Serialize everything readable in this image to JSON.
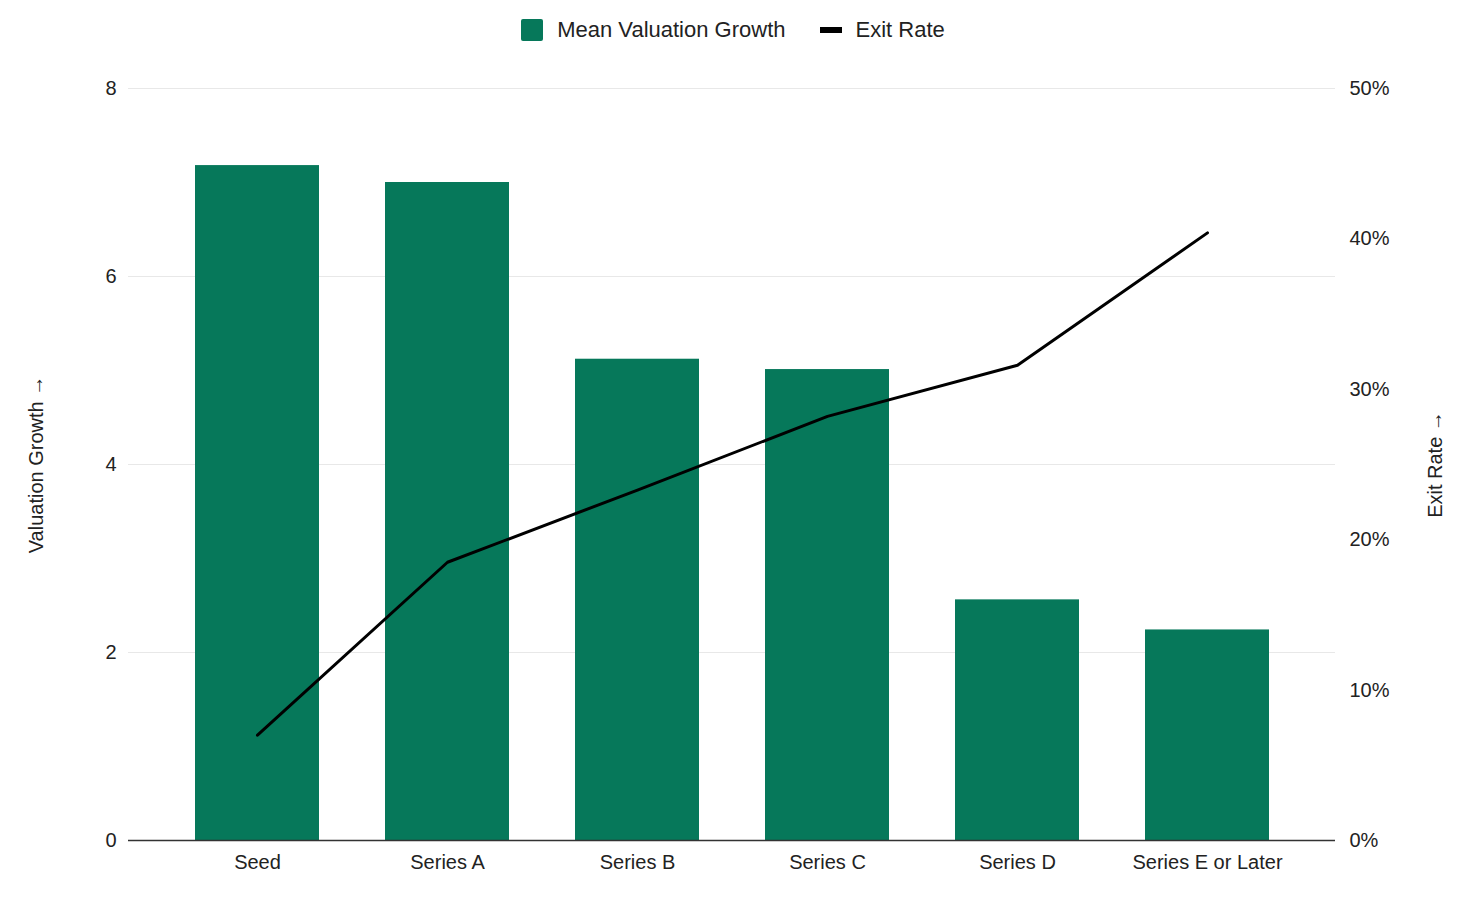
{
  "chart_data": {
    "type": "bar",
    "categories": [
      "Seed",
      "Series A",
      "Series B",
      "Series C",
      "Series D",
      "Series E or Later"
    ],
    "series": [
      {
        "name": "Mean Valuation Growth",
        "type": "bar",
        "color": "#06785a",
        "values": [
          7.18,
          7.0,
          5.12,
          5.01,
          2.56,
          2.24
        ]
      },
      {
        "name": "Exit Rate",
        "type": "line",
        "color": "#000000",
        "axis": "y2",
        "values": [
          7.0,
          18.5,
          23.3,
          28.2,
          31.6,
          40.4
        ]
      }
    ],
    "ylabel": "Valuation Growth",
    "y2label": "Exit Rate",
    "ylim": [
      0,
      8
    ],
    "yticks": [
      0,
      2,
      4,
      6,
      8
    ],
    "y2lim": [
      0,
      50
    ],
    "y2ticks": [
      {
        "value": 0,
        "label": "0%"
      },
      {
        "value": 10,
        "label": "10%"
      },
      {
        "value": 20,
        "label": "20%"
      },
      {
        "value": 30,
        "label": "30%"
      },
      {
        "value": 40,
        "label": "40%"
      },
      {
        "value": 50,
        "label": "50%"
      }
    ],
    "grid": true,
    "legend": "top"
  }
}
